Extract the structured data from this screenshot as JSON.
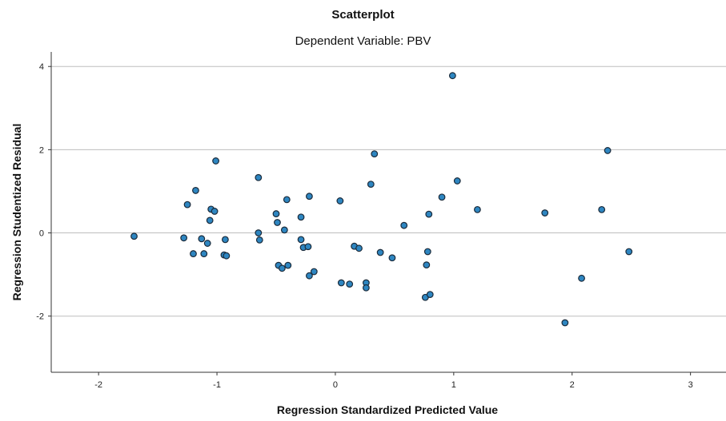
{
  "chart_data": {
    "type": "scatter",
    "title": "Scatterplot",
    "subtitle": "Dependent Variable: PBV",
    "xlabel": "Regression Standardized Predicted Value",
    "ylabel": "Regression Studentized Residual",
    "xlim": [
      -2.4,
      3.3
    ],
    "ylim": [
      -3.35,
      4.35
    ],
    "xticks": [
      -2,
      -1,
      0,
      1,
      2,
      3
    ],
    "yticks": [
      -2,
      0,
      2,
      4
    ],
    "xtick_labels": [
      "-2",
      "-1",
      "0",
      "1",
      "2",
      "3"
    ],
    "ytick_labels": [
      "-2",
      "0",
      "2",
      "4"
    ],
    "grid": "horizontal at y ticks",
    "point_color": "#2e86c1",
    "point_edge_color": "#1a2a3a",
    "points": [
      {
        "x": -1.7,
        "y": -0.08
      },
      {
        "x": -1.28,
        "y": -0.12
      },
      {
        "x": -1.25,
        "y": 0.68
      },
      {
        "x": -1.2,
        "y": -0.5
      },
      {
        "x": -1.18,
        "y": 1.02
      },
      {
        "x": -1.13,
        "y": -0.14
      },
      {
        "x": -1.11,
        "y": -0.5
      },
      {
        "x": -1.08,
        "y": -0.25
      },
      {
        "x": -1.06,
        "y": 0.3
      },
      {
        "x": -1.05,
        "y": 0.57
      },
      {
        "x": -1.02,
        "y": 0.52
      },
      {
        "x": -1.01,
        "y": 1.73
      },
      {
        "x": -0.94,
        "y": -0.53
      },
      {
        "x": -0.93,
        "y": -0.16
      },
      {
        "x": -0.92,
        "y": -0.55
      },
      {
        "x": -0.65,
        "y": 1.33
      },
      {
        "x": -0.65,
        "y": 0.0
      },
      {
        "x": -0.64,
        "y": -0.17
      },
      {
        "x": -0.5,
        "y": 0.46
      },
      {
        "x": -0.49,
        "y": 0.25
      },
      {
        "x": -0.48,
        "y": -0.78
      },
      {
        "x": -0.45,
        "y": -0.85
      },
      {
        "x": -0.43,
        "y": 0.07
      },
      {
        "x": -0.41,
        "y": 0.8
      },
      {
        "x": -0.4,
        "y": -0.78
      },
      {
        "x": -0.29,
        "y": 0.38
      },
      {
        "x": -0.29,
        "y": -0.16
      },
      {
        "x": -0.27,
        "y": -0.35
      },
      {
        "x": -0.23,
        "y": -0.33
      },
      {
        "x": -0.22,
        "y": 0.88
      },
      {
        "x": -0.22,
        "y": -1.03
      },
      {
        "x": -0.18,
        "y": -0.93
      },
      {
        "x": 0.04,
        "y": 0.77
      },
      {
        "x": 0.05,
        "y": -1.2
      },
      {
        "x": 0.12,
        "y": -1.23
      },
      {
        "x": 0.16,
        "y": -0.32
      },
      {
        "x": 0.2,
        "y": -0.37
      },
      {
        "x": 0.26,
        "y": -1.2
      },
      {
        "x": 0.26,
        "y": -1.32
      },
      {
        "x": 0.3,
        "y": 1.17
      },
      {
        "x": 0.33,
        "y": 1.9
      },
      {
        "x": 0.38,
        "y": -0.47
      },
      {
        "x": 0.48,
        "y": -0.6
      },
      {
        "x": 0.58,
        "y": 0.18
      },
      {
        "x": 0.76,
        "y": -1.55
      },
      {
        "x": 0.77,
        "y": -0.77
      },
      {
        "x": 0.78,
        "y": -0.45
      },
      {
        "x": 0.79,
        "y": 0.45
      },
      {
        "x": 0.8,
        "y": -1.48
      },
      {
        "x": 0.9,
        "y": 0.86
      },
      {
        "x": 0.99,
        "y": 3.78
      },
      {
        "x": 1.03,
        "y": 1.25
      },
      {
        "x": 1.2,
        "y": 0.56
      },
      {
        "x": 1.77,
        "y": 0.48
      },
      {
        "x": 1.94,
        "y": -2.16
      },
      {
        "x": 2.08,
        "y": -1.09
      },
      {
        "x": 2.25,
        "y": 0.56
      },
      {
        "x": 2.3,
        "y": 1.98
      },
      {
        "x": 2.48,
        "y": -0.45
      }
    ]
  }
}
